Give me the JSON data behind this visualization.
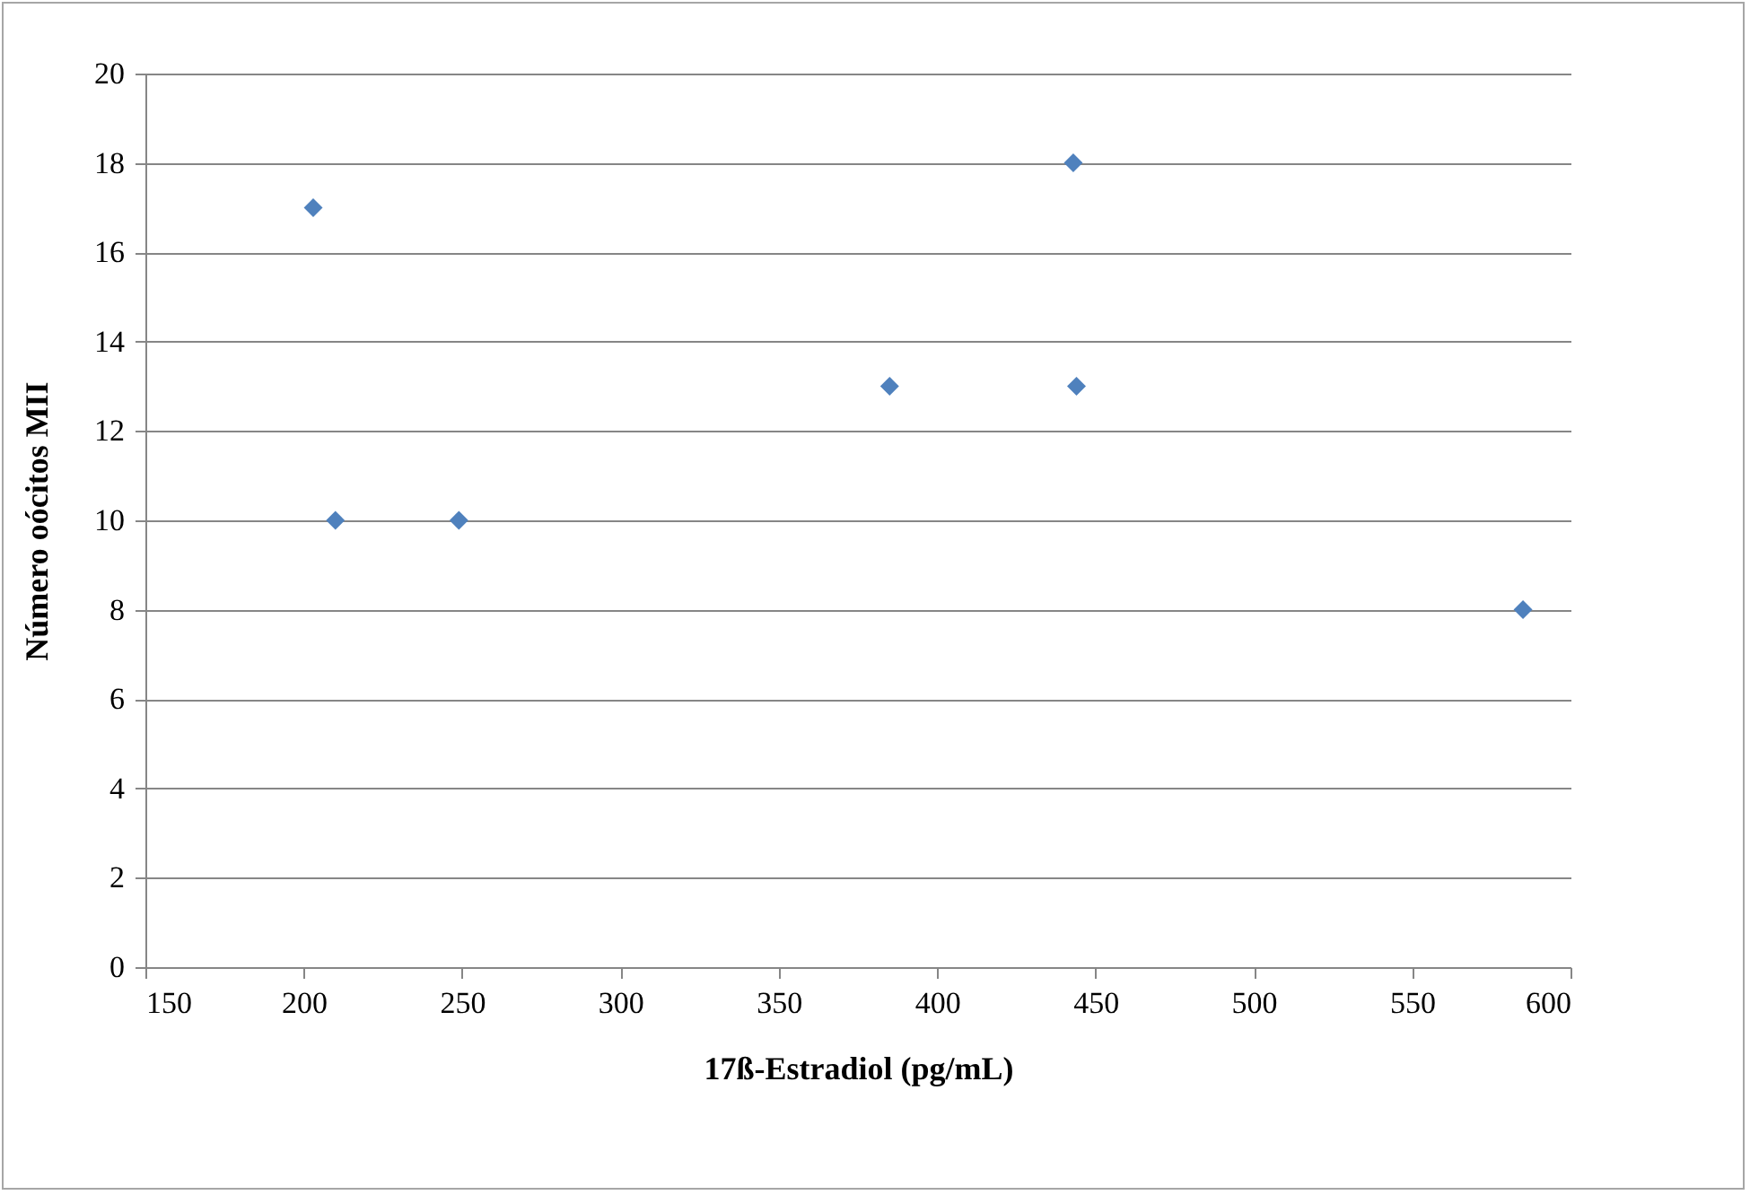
{
  "chart_data": {
    "type": "scatter",
    "xlabel": "17ß-Estradiol (pg/mL)",
    "ylabel": "Número oócitos MII",
    "x": [
      203,
      210,
      249,
      385,
      443,
      444,
      585
    ],
    "series": [
      {
        "color": "#4f81bd",
        "values": [
          17,
          10,
          10,
          13,
          18,
          13,
          8
        ]
      }
    ],
    "xlim": [
      150,
      600
    ],
    "xticks": [
      150,
      200,
      250,
      300,
      350,
      400,
      450,
      500,
      550,
      600
    ],
    "ylim": [
      0,
      20
    ],
    "yticks": [
      0,
      2,
      4,
      6,
      8,
      10,
      12,
      14,
      16,
      18,
      20
    ],
    "grid": "y",
    "marker": "diamond"
  }
}
